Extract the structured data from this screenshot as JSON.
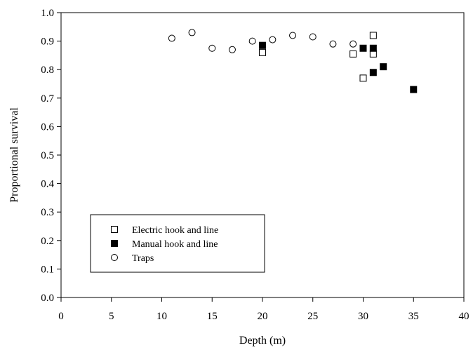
{
  "chart_data": {
    "type": "scatter",
    "title": "",
    "xlabel": "Depth (m)",
    "ylabel": "Proportional survival",
    "xlim": [
      0,
      40
    ],
    "ylim": [
      0.0,
      1.0
    ],
    "xticks": [
      "0",
      "5",
      "10",
      "15",
      "20",
      "25",
      "30",
      "35",
      "40"
    ],
    "yticks": [
      "0.0",
      "0.1",
      "0.2",
      "0.3",
      "0.4",
      "0.5",
      "0.6",
      "0.7",
      "0.8",
      "0.9",
      "1.0"
    ],
    "grid": false,
    "legend_position": "bottom-left",
    "series": [
      {
        "name": "Electric hook and line",
        "marker": "open-square",
        "color": "#000000",
        "x": [
          20,
          29,
          30,
          31,
          31
        ],
        "y": [
          0.86,
          0.855,
          0.77,
          0.92,
          0.855
        ]
      },
      {
        "name": "Manual hook and line",
        "marker": "filled-square",
        "color": "#000000",
        "x": [
          20,
          30,
          31,
          31,
          32,
          35
        ],
        "y": [
          0.885,
          0.875,
          0.875,
          0.79,
          0.81,
          0.73
        ]
      },
      {
        "name": "Traps",
        "marker": "open-circle",
        "color": "#000000",
        "x": [
          11,
          13,
          15,
          17,
          19,
          21,
          23,
          25,
          27,
          29
        ],
        "y": [
          0.91,
          0.93,
          0.875,
          0.87,
          0.9,
          0.905,
          0.92,
          0.915,
          0.89,
          0.89
        ]
      }
    ]
  }
}
